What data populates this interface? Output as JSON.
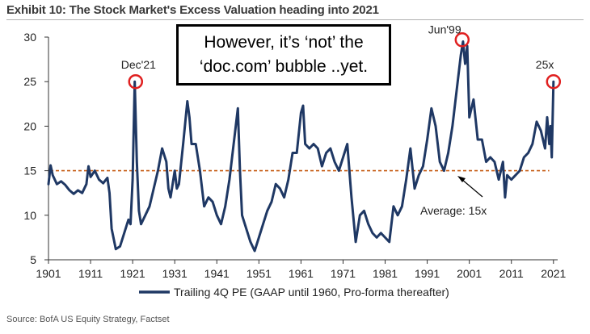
{
  "title": "Exhibit 10: The Stock Market's Excess Valuation heading into 2021",
  "source": "Source: BofA US Equity Strategy, Factset",
  "callout": {
    "line1": "However, it’s ‘not’ the",
    "line2": "‘doc.com’ bubble ..yet."
  },
  "colors": {
    "series": "#1f3864",
    "average": "#c55a11",
    "highlight": "#e02020",
    "axis": "#333333"
  },
  "chart_data": {
    "type": "line",
    "title": "",
    "xlabel": "",
    "ylabel": "",
    "xlim": [
      1901,
      2022
    ],
    "ylim": [
      5,
      30
    ],
    "x_ticks": [
      "1901",
      "1911",
      "1921",
      "1931",
      "1941",
      "1951",
      "1961",
      "1971",
      "1981",
      "1991",
      "2001",
      "2011",
      "2021"
    ],
    "y_ticks": [
      "5",
      "10",
      "15",
      "20",
      "25",
      "30"
    ],
    "grid": false,
    "legend": "bottom",
    "series": [
      {
        "name": "Trailing 4Q PE (GAAP until 1960, Pro-forma thereafter)",
        "x": [
          1901,
          1901.5,
          1902,
          1903,
          1904,
          1905,
          1906,
          1907,
          1908,
          1909,
          1910,
          1910.5,
          1911,
          1912,
          1913,
          1914,
          1915,
          1915.5,
          1916,
          1917,
          1918,
          1919,
          1920,
          1920.5,
          1921,
          1921.5,
          1922,
          1922.5,
          1923,
          1924,
          1925,
          1926,
          1927,
          1928,
          1929,
          1929.5,
          1930,
          1931,
          1931.5,
          1932,
          1933,
          1934,
          1934.5,
          1935,
          1936,
          1937,
          1938,
          1939,
          1940,
          1941,
          1942,
          1943,
          1944,
          1945,
          1946,
          1946.5,
          1947,
          1948,
          1949,
          1950,
          1951,
          1952,
          1953,
          1954,
          1955,
          1956,
          1957,
          1958,
          1959,
          1960,
          1961,
          1961.5,
          1962,
          1963,
          1964,
          1965,
          1966,
          1967,
          1968,
          1969,
          1970,
          1971,
          1972,
          1973,
          1974,
          1975,
          1976,
          1977,
          1978,
          1979,
          1980,
          1981,
          1982,
          1983,
          1984,
          1985,
          1986,
          1987,
          1988,
          1989,
          1990,
          1991,
          1992,
          1993,
          1994,
          1995,
          1996,
          1997,
          1998,
          1999,
          1999.5,
          2000,
          2000.5,
          2001,
          2002,
          2003,
          2004,
          2005,
          2006,
          2007,
          2008,
          2009,
          2009.5,
          2010,
          2011,
          2012,
          2013,
          2014,
          2015,
          2016,
          2017,
          2018,
          2019,
          2019.5,
          2020,
          2020.3,
          2020.6,
          2021
        ],
        "values": [
          13.5,
          15.6,
          14.5,
          13.5,
          13.8,
          13.4,
          12.8,
          12.4,
          12.8,
          12.5,
          13.5,
          15.5,
          14.3,
          15.0,
          14.0,
          13.6,
          14.2,
          12.5,
          8.5,
          6.2,
          6.5,
          8.0,
          9.5,
          9.0,
          14.0,
          25.0,
          16.0,
          10.5,
          9.0,
          10.0,
          11.0,
          13.0,
          15.0,
          17.5,
          16.0,
          13.0,
          12.0,
          15.0,
          13.0,
          13.5,
          18.0,
          22.8,
          21.0,
          18.0,
          18.0,
          15.0,
          11.0,
          12.0,
          11.5,
          10.0,
          9.0,
          11.0,
          14.0,
          18.0,
          22.0,
          15.0,
          10.0,
          8.5,
          7.0,
          6.0,
          7.5,
          9.0,
          10.5,
          11.5,
          13.5,
          13.0,
          12.0,
          14.0,
          17.0,
          17.0,
          21.5,
          22.3,
          18.0,
          17.5,
          18.0,
          17.5,
          15.5,
          17.0,
          17.5,
          16.0,
          15.0,
          16.5,
          18.0,
          12.0,
          7.0,
          10.0,
          10.5,
          9.0,
          8.0,
          7.5,
          8.0,
          7.5,
          7.0,
          11.0,
          10.0,
          11.0,
          14.0,
          17.5,
          13.0,
          14.5,
          15.5,
          18.5,
          22.0,
          20.0,
          16.0,
          15.0,
          17.0,
          20.0,
          24.0,
          28.0,
          29.5,
          27.0,
          29.0,
          21.0,
          23.0,
          18.5,
          18.5,
          16.0,
          16.5,
          16.0,
          14.0,
          16.0,
          12.0,
          14.5,
          14.0,
          14.5,
          15.0,
          16.5,
          17.0,
          18.0,
          20.5,
          19.5,
          17.5,
          21.0,
          18.0,
          20.0,
          16.5,
          25.0
        ]
      },
      {
        "name": "Average: 15x",
        "constant": 15,
        "label": "Average: 15x"
      }
    ],
    "annotations": [
      {
        "label": "Dec'21",
        "x": 1921.7,
        "y": 25
      },
      {
        "label": "Jun'99",
        "x": 1999.3,
        "y": 29.7
      },
      {
        "label": "25x",
        "x": 2021,
        "y": 25
      }
    ]
  }
}
